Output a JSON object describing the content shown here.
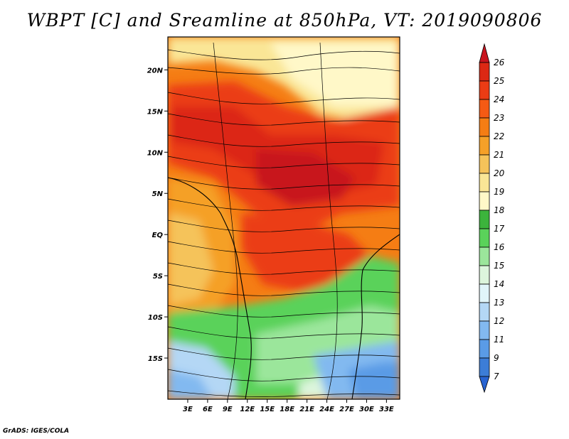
{
  "title": "WBPT [C] and Sreamline at 850hPa, VT: 2019090806",
  "credit": "GrADS: IGES/COLA",
  "map": {
    "lon_range": [
      0,
      35
    ],
    "lat_range": [
      -20,
      24
    ],
    "lon_ticks": [
      {
        "value": 3,
        "label": "3E"
      },
      {
        "value": 6,
        "label": "6E"
      },
      {
        "value": 9,
        "label": "9E"
      },
      {
        "value": 12,
        "label": "12E"
      },
      {
        "value": 15,
        "label": "15E"
      },
      {
        "value": 18,
        "label": "18E"
      },
      {
        "value": 21,
        "label": "21E"
      },
      {
        "value": 24,
        "label": "24E"
      },
      {
        "value": 27,
        "label": "27E"
      },
      {
        "value": 30,
        "label": "30E"
      },
      {
        "value": 33,
        "label": "33E"
      }
    ],
    "lat_ticks": [
      {
        "value": 20,
        "label": "20N"
      },
      {
        "value": 15,
        "label": "15N"
      },
      {
        "value": 10,
        "label": "10N"
      },
      {
        "value": 5,
        "label": "5N"
      },
      {
        "value": 0,
        "label": "EQ"
      },
      {
        "value": -5,
        "label": "5S"
      },
      {
        "value": -10,
        "label": "10S"
      },
      {
        "value": -15,
        "label": "15S"
      }
    ]
  },
  "colorbar": {
    "levels": [
      {
        "label": "26",
        "color": "#c8141e"
      },
      {
        "label": "25",
        "color": "#dc2814"
      },
      {
        "label": "24",
        "color": "#eb3c14"
      },
      {
        "label": "23",
        "color": "#f55a14"
      },
      {
        "label": "22",
        "color": "#f57d14"
      },
      {
        "label": "21",
        "color": "#f5a028"
      },
      {
        "label": "20",
        "color": "#f5c35a"
      },
      {
        "label": "19",
        "color": "#fae696"
      },
      {
        "label": "18",
        "color": "#fff8c8"
      },
      {
        "label": "17",
        "color": "#3cb43c"
      },
      {
        "label": "16",
        "color": "#5ad25a"
      },
      {
        "label": "15",
        "color": "#9be69b"
      },
      {
        "label": "14",
        "color": "#dcf5dc"
      },
      {
        "label": "13",
        "color": "#e1f5fa"
      },
      {
        "label": "12",
        "color": "#b4d7f5"
      },
      {
        "label": "11",
        "color": "#82b9f0"
      },
      {
        "label": "9",
        "color": "#5a9be6"
      },
      {
        "label": "7",
        "color": "#3c7dd7"
      }
    ],
    "below_color": "#2864d2"
  }
}
